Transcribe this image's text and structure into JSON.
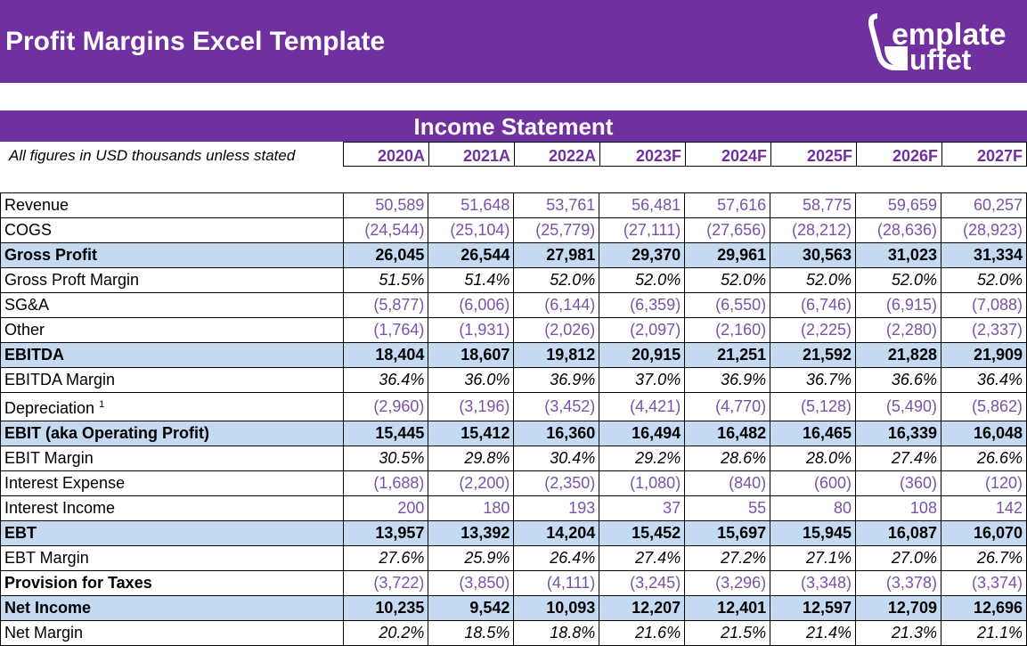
{
  "header": {
    "title": "Profit Margins Excel Template",
    "logo_text": "templatebuffet",
    "brand_color": "#7030A0"
  },
  "section_title": "Income Statement",
  "note": "All figures in USD thousands unless stated",
  "years": [
    "2020A",
    "2021A",
    "2022A",
    "2023F",
    "2024F",
    "2025F",
    "2026F",
    "2027F"
  ],
  "rows": [
    {
      "label": "Revenue",
      "type": "input",
      "values": [
        "50,589",
        "51,648",
        "53,761",
        "56,481",
        "57,616",
        "58,775",
        "59,659",
        "60,257"
      ]
    },
    {
      "label": "COGS",
      "type": "input",
      "values": [
        "(24,544)",
        "(25,104)",
        "(25,779)",
        "(27,111)",
        "(27,656)",
        "(28,212)",
        "(28,636)",
        "(28,923)"
      ]
    },
    {
      "label": "Gross Profit",
      "type": "total",
      "values": [
        "26,045",
        "26,544",
        "27,981",
        "29,370",
        "29,961",
        "30,563",
        "31,023",
        "31,334"
      ]
    },
    {
      "label": "Gross Proft Margin",
      "type": "margin",
      "values": [
        "51.5%",
        "51.4%",
        "52.0%",
        "52.0%",
        "52.0%",
        "52.0%",
        "52.0%",
        "52.0%"
      ]
    },
    {
      "label": "SG&A",
      "type": "input",
      "values": [
        "(5,877)",
        "(6,006)",
        "(6,144)",
        "(6,359)",
        "(6,550)",
        "(6,746)",
        "(6,915)",
        "(7,088)"
      ]
    },
    {
      "label": "Other",
      "type": "input",
      "values": [
        "(1,764)",
        "(1,931)",
        "(2,026)",
        "(2,097)",
        "(2,160)",
        "(2,225)",
        "(2,280)",
        "(2,337)"
      ]
    },
    {
      "label": "EBITDA",
      "type": "total",
      "values": [
        "18,404",
        "18,607",
        "19,812",
        "20,915",
        "21,251",
        "21,592",
        "21,828",
        "21,909"
      ]
    },
    {
      "label": "EBITDA Margin",
      "type": "margin",
      "values": [
        "36.4%",
        "36.0%",
        "36.9%",
        "37.0%",
        "36.9%",
        "36.7%",
        "36.6%",
        "36.4%"
      ]
    },
    {
      "label": "Depreciation",
      "sup": "1",
      "type": "input",
      "values": [
        "(2,960)",
        "(3,196)",
        "(3,452)",
        "(4,421)",
        "(4,770)",
        "(5,128)",
        "(5,490)",
        "(5,862)"
      ]
    },
    {
      "label": "EBIT (aka Operating Profit)",
      "type": "total",
      "values": [
        "15,445",
        "15,412",
        "16,360",
        "16,494",
        "16,482",
        "16,465",
        "16,339",
        "16,048"
      ]
    },
    {
      "label": "EBIT Margin",
      "type": "margin",
      "values": [
        "30.5%",
        "29.8%",
        "30.4%",
        "29.2%",
        "28.6%",
        "28.0%",
        "27.4%",
        "26.6%"
      ]
    },
    {
      "label": "Interest Expense",
      "type": "input",
      "values": [
        "(1,688)",
        "(2,200)",
        "(2,350)",
        "(1,080)",
        "(840)",
        "(600)",
        "(360)",
        "(120)"
      ]
    },
    {
      "label": "Interest Income",
      "type": "input",
      "values": [
        "200",
        "180",
        "193",
        "37",
        "55",
        "80",
        "108",
        "142"
      ]
    },
    {
      "label": "EBT",
      "type": "total",
      "values": [
        "13,957",
        "13,392",
        "14,204",
        "15,452",
        "15,697",
        "15,945",
        "16,087",
        "16,070"
      ]
    },
    {
      "label": "EBT Margin",
      "type": "margin",
      "values": [
        "27.6%",
        "25.9%",
        "26.4%",
        "27.4%",
        "27.2%",
        "27.1%",
        "27.0%",
        "26.7%"
      ]
    },
    {
      "label": "Provision for Taxes",
      "type": "input boldlbl",
      "values": [
        "(3,722)",
        "(3,850)",
        "(4,111)",
        "(3,245)",
        "(3,296)",
        "(3,348)",
        "(3,378)",
        "(3,374)"
      ]
    },
    {
      "label": "Net Income",
      "type": "total",
      "values": [
        "10,235",
        "9,542",
        "10,093",
        "12,207",
        "12,401",
        "12,597",
        "12,709",
        "12,696"
      ]
    },
    {
      "label": "Net Margin",
      "type": "margin",
      "values": [
        "20.2%",
        "18.5%",
        "18.8%",
        "21.6%",
        "21.5%",
        "21.4%",
        "21.3%",
        "21.1%"
      ]
    }
  ]
}
